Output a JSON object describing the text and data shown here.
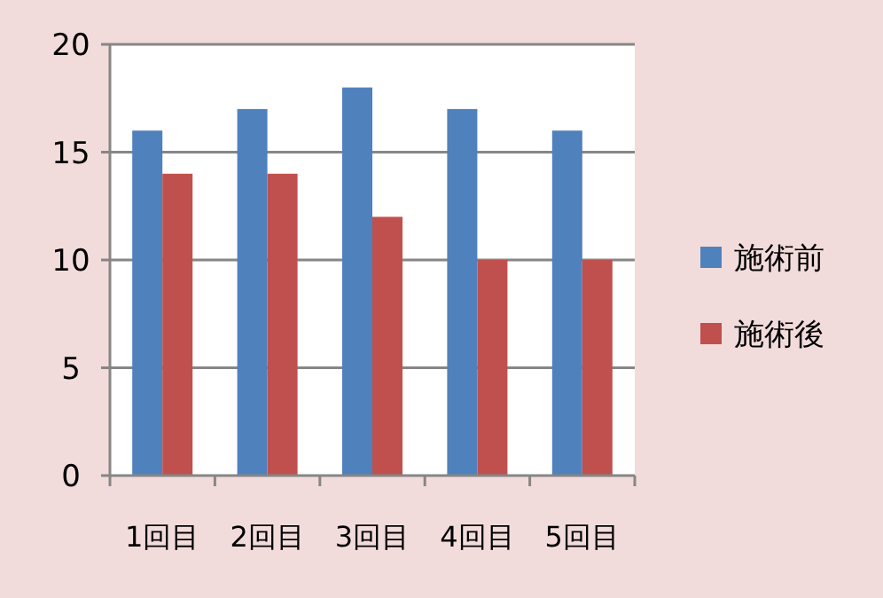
{
  "chart_data": {
    "type": "bar",
    "categories": [
      "1回目",
      "2回目",
      "3回目",
      "4回目",
      "5回目"
    ],
    "series": [
      {
        "name": "施術前",
        "color": "#4f81bd",
        "values": [
          16,
          17,
          18,
          17,
          16
        ]
      },
      {
        "name": "施術後",
        "color": "#c0504d",
        "values": [
          14,
          14,
          12,
          10,
          10
        ]
      }
    ],
    "ylim": [
      0,
      20
    ],
    "yticks": [
      0,
      5,
      10,
      15,
      20
    ],
    "grid": "y",
    "legend": "right"
  }
}
